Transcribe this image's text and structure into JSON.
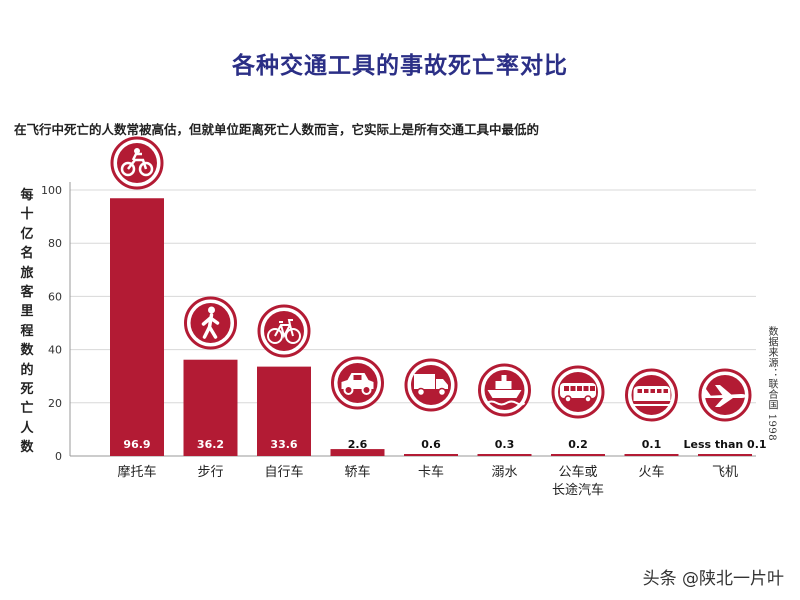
{
  "chart_data": {
    "type": "bar",
    "title": "各种交通工具的事故死亡率对比",
    "subtitle": "在飞行中死亡的人数常被高估，但就单位距离死亡人数而言，它实际上是所有交通工具中最低的",
    "ylabel": "每十亿名旅客里程数的死亡人数",
    "xlabel": "",
    "ylim": [
      0,
      100
    ],
    "yticks": [
      0,
      20,
      40,
      60,
      80,
      100
    ],
    "grid": true,
    "categories": [
      "摩托车",
      "步行",
      "自行车",
      "轿车",
      "卡车",
      "溺水",
      "公车或\n长途汽车",
      "火车",
      "飞机"
    ],
    "values": [
      96.9,
      36.2,
      33.6,
      2.6,
      0.6,
      0.3,
      0.2,
      0.1,
      0.05
    ],
    "data_labels": [
      "96.9",
      "36.2",
      "33.6",
      "2.6",
      "0.6",
      "0.3",
      "0.2",
      "0.1",
      "Less than 0.1"
    ],
    "icons": [
      "motorcycle-icon",
      "pedestrian-icon",
      "bicycle-icon",
      "car-icon",
      "truck-icon",
      "ship-icon",
      "bus-icon",
      "train-icon",
      "airplane-icon"
    ],
    "bar_color": "#b31b34",
    "source": "数据来源：联合国 1998"
  },
  "watermark": "头条 @陕北一片叶"
}
